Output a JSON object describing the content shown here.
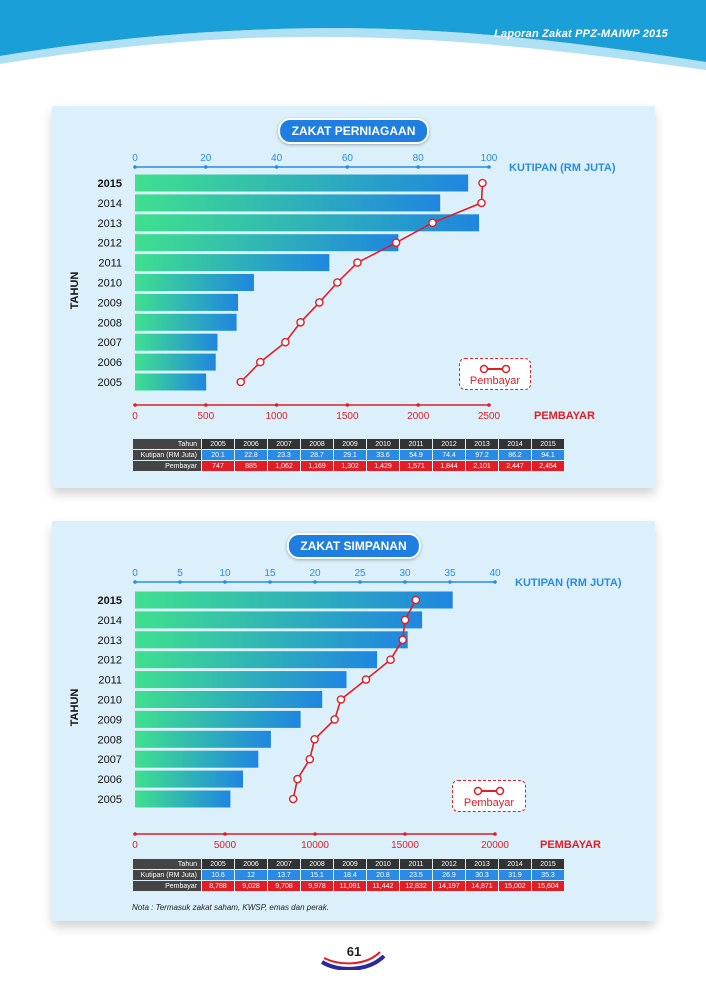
{
  "header": {
    "report_title": "Laporan Zakat PPZ-MAIWP 2015"
  },
  "colors": {
    "kutipan_axis": "#2a8be6",
    "pembayaran": "#e11d26",
    "bar_start": "#3fe08e",
    "bar_end": "#1f86e0",
    "header_blue": "#1a9fd8"
  },
  "charts": [
    {
      "title": "ZAKAT PERNIAGAAN",
      "ylabel": "TAHUN",
      "top_axis_label": "KUTIPAN (RM JUTA)",
      "bottom_axis_label": "PEMBAYAR",
      "legend_label": "Pembayar",
      "table_head_year": "Tahun",
      "table_head_kutipan": "Kutipan (RM Juta)",
      "table_head_pembayar": "Pembayar",
      "table_kutipan_text": [
        "20.1",
        "22.8",
        "23.3",
        "28.7",
        "29.1",
        "33.6",
        "54.9",
        "74.4",
        "97.2",
        "86.2",
        "94.1"
      ],
      "table_pembayar_text": [
        "747",
        "885",
        "1,062",
        "1,169",
        "1,302",
        "1,429",
        "1,571",
        "1,844",
        "2,101",
        "2,447",
        "2,454"
      ]
    },
    {
      "title": "ZAKAT SIMPANAN",
      "ylabel": "TAHUN",
      "top_axis_label": "KUTIPAN (RM JUTA)",
      "bottom_axis_label": "PEMBAYAR",
      "legend_label": "Pembayar",
      "table_head_year": "Tahun",
      "table_head_kutipan": "Kutipan (RM Juta)",
      "table_head_pembayar": "Pembayar",
      "table_kutipan_text": [
        "10.6",
        "12",
        "13.7",
        "15.1",
        "18.4",
        "20.8",
        "23.5",
        "26.9",
        "30.3",
        "31.9",
        "35.3"
      ],
      "table_pembayar_text": [
        "8,788",
        "9,028",
        "9,708",
        "9,978",
        "11,091",
        "11,442",
        "12,832",
        "14,197",
        "14,871",
        "15,002",
        "15,604"
      ]
    }
  ],
  "chart_data": [
    {
      "type": "bar",
      "title": "ZAKAT PERNIAGAAN",
      "categories": [
        "2005",
        "2006",
        "2007",
        "2008",
        "2009",
        "2010",
        "2011",
        "2012",
        "2013",
        "2014",
        "2015"
      ],
      "series": [
        {
          "name": "Kutipan (RM Juta)",
          "type": "bar",
          "values": [
            20.1,
            22.8,
            23.3,
            28.7,
            29.1,
            33.6,
            54.9,
            74.4,
            97.2,
            86.2,
            94.1
          ]
        },
        {
          "name": "Pembayar",
          "type": "line",
          "values": [
            747,
            885,
            1062,
            1169,
            1302,
            1429,
            1571,
            1844,
            2101,
            2447,
            2454
          ]
        }
      ],
      "top_axis": {
        "label": "KUTIPAN (RM JUTA)",
        "range": [
          0,
          100
        ],
        "ticks": [
          0,
          20,
          40,
          60,
          80,
          100
        ]
      },
      "bottom_axis": {
        "label": "PEMBAYAR",
        "range": [
          0,
          2500
        ],
        "ticks": [
          0,
          500,
          1000,
          1500,
          2000,
          2500
        ]
      },
      "ylabel": "TAHUN",
      "legend": "bottom-right"
    },
    {
      "type": "bar",
      "title": "ZAKAT SIMPANAN",
      "categories": [
        "2005",
        "2006",
        "2007",
        "2008",
        "2009",
        "2010",
        "2011",
        "2012",
        "2013",
        "2014",
        "2015"
      ],
      "series": [
        {
          "name": "Kutipan (RM Juta)",
          "type": "bar",
          "values": [
            10.6,
            12,
            13.7,
            15.1,
            18.4,
            20.8,
            23.5,
            26.9,
            30.3,
            31.9,
            35.3
          ]
        },
        {
          "name": "Pembayar",
          "type": "line",
          "values": [
            8788,
            9028,
            9708,
            9978,
            11091,
            11442,
            12832,
            14197,
            14871,
            15002,
            15604
          ]
        }
      ],
      "top_axis": {
        "label": "KUTIPAN (RM JUTA)",
        "range": [
          0,
          40
        ],
        "ticks": [
          0,
          5,
          10,
          15,
          20,
          25,
          30,
          35,
          40
        ]
      },
      "bottom_axis": {
        "label": "PEMBAYAR",
        "range": [
          0,
          20000
        ],
        "ticks": [
          0,
          5000,
          10000,
          15000,
          20000
        ]
      },
      "ylabel": "TAHUN",
      "legend": "bottom-right"
    }
  ],
  "note": "Nota : Termasuk zakat saham, KWSP, emas dan perak.",
  "page_number": "61"
}
